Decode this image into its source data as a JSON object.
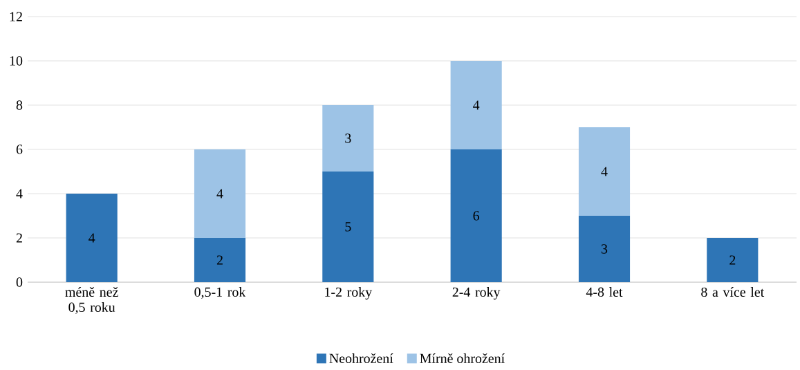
{
  "chart_data": {
    "type": "bar",
    "stacked": true,
    "categories": [
      "méně než 0,5 roku",
      "0,5-1 rok",
      "1-2 roky",
      "2-4 roky",
      "4-8 let",
      "8 a více let"
    ],
    "series": [
      {
        "name": "Neohrožení",
        "color": "#2e75b6",
        "values": [
          4,
          2,
          5,
          6,
          3,
          2
        ]
      },
      {
        "name": "Mírně ohrožení",
        "color": "#9dc3e6",
        "values": [
          null,
          4,
          3,
          4,
          4,
          null
        ]
      }
    ],
    "ylim": [
      0,
      12
    ],
    "yticks": [
      0,
      2,
      4,
      6,
      8,
      10,
      12
    ],
    "grid": "y",
    "legend": "bottom",
    "data_labels": true
  }
}
